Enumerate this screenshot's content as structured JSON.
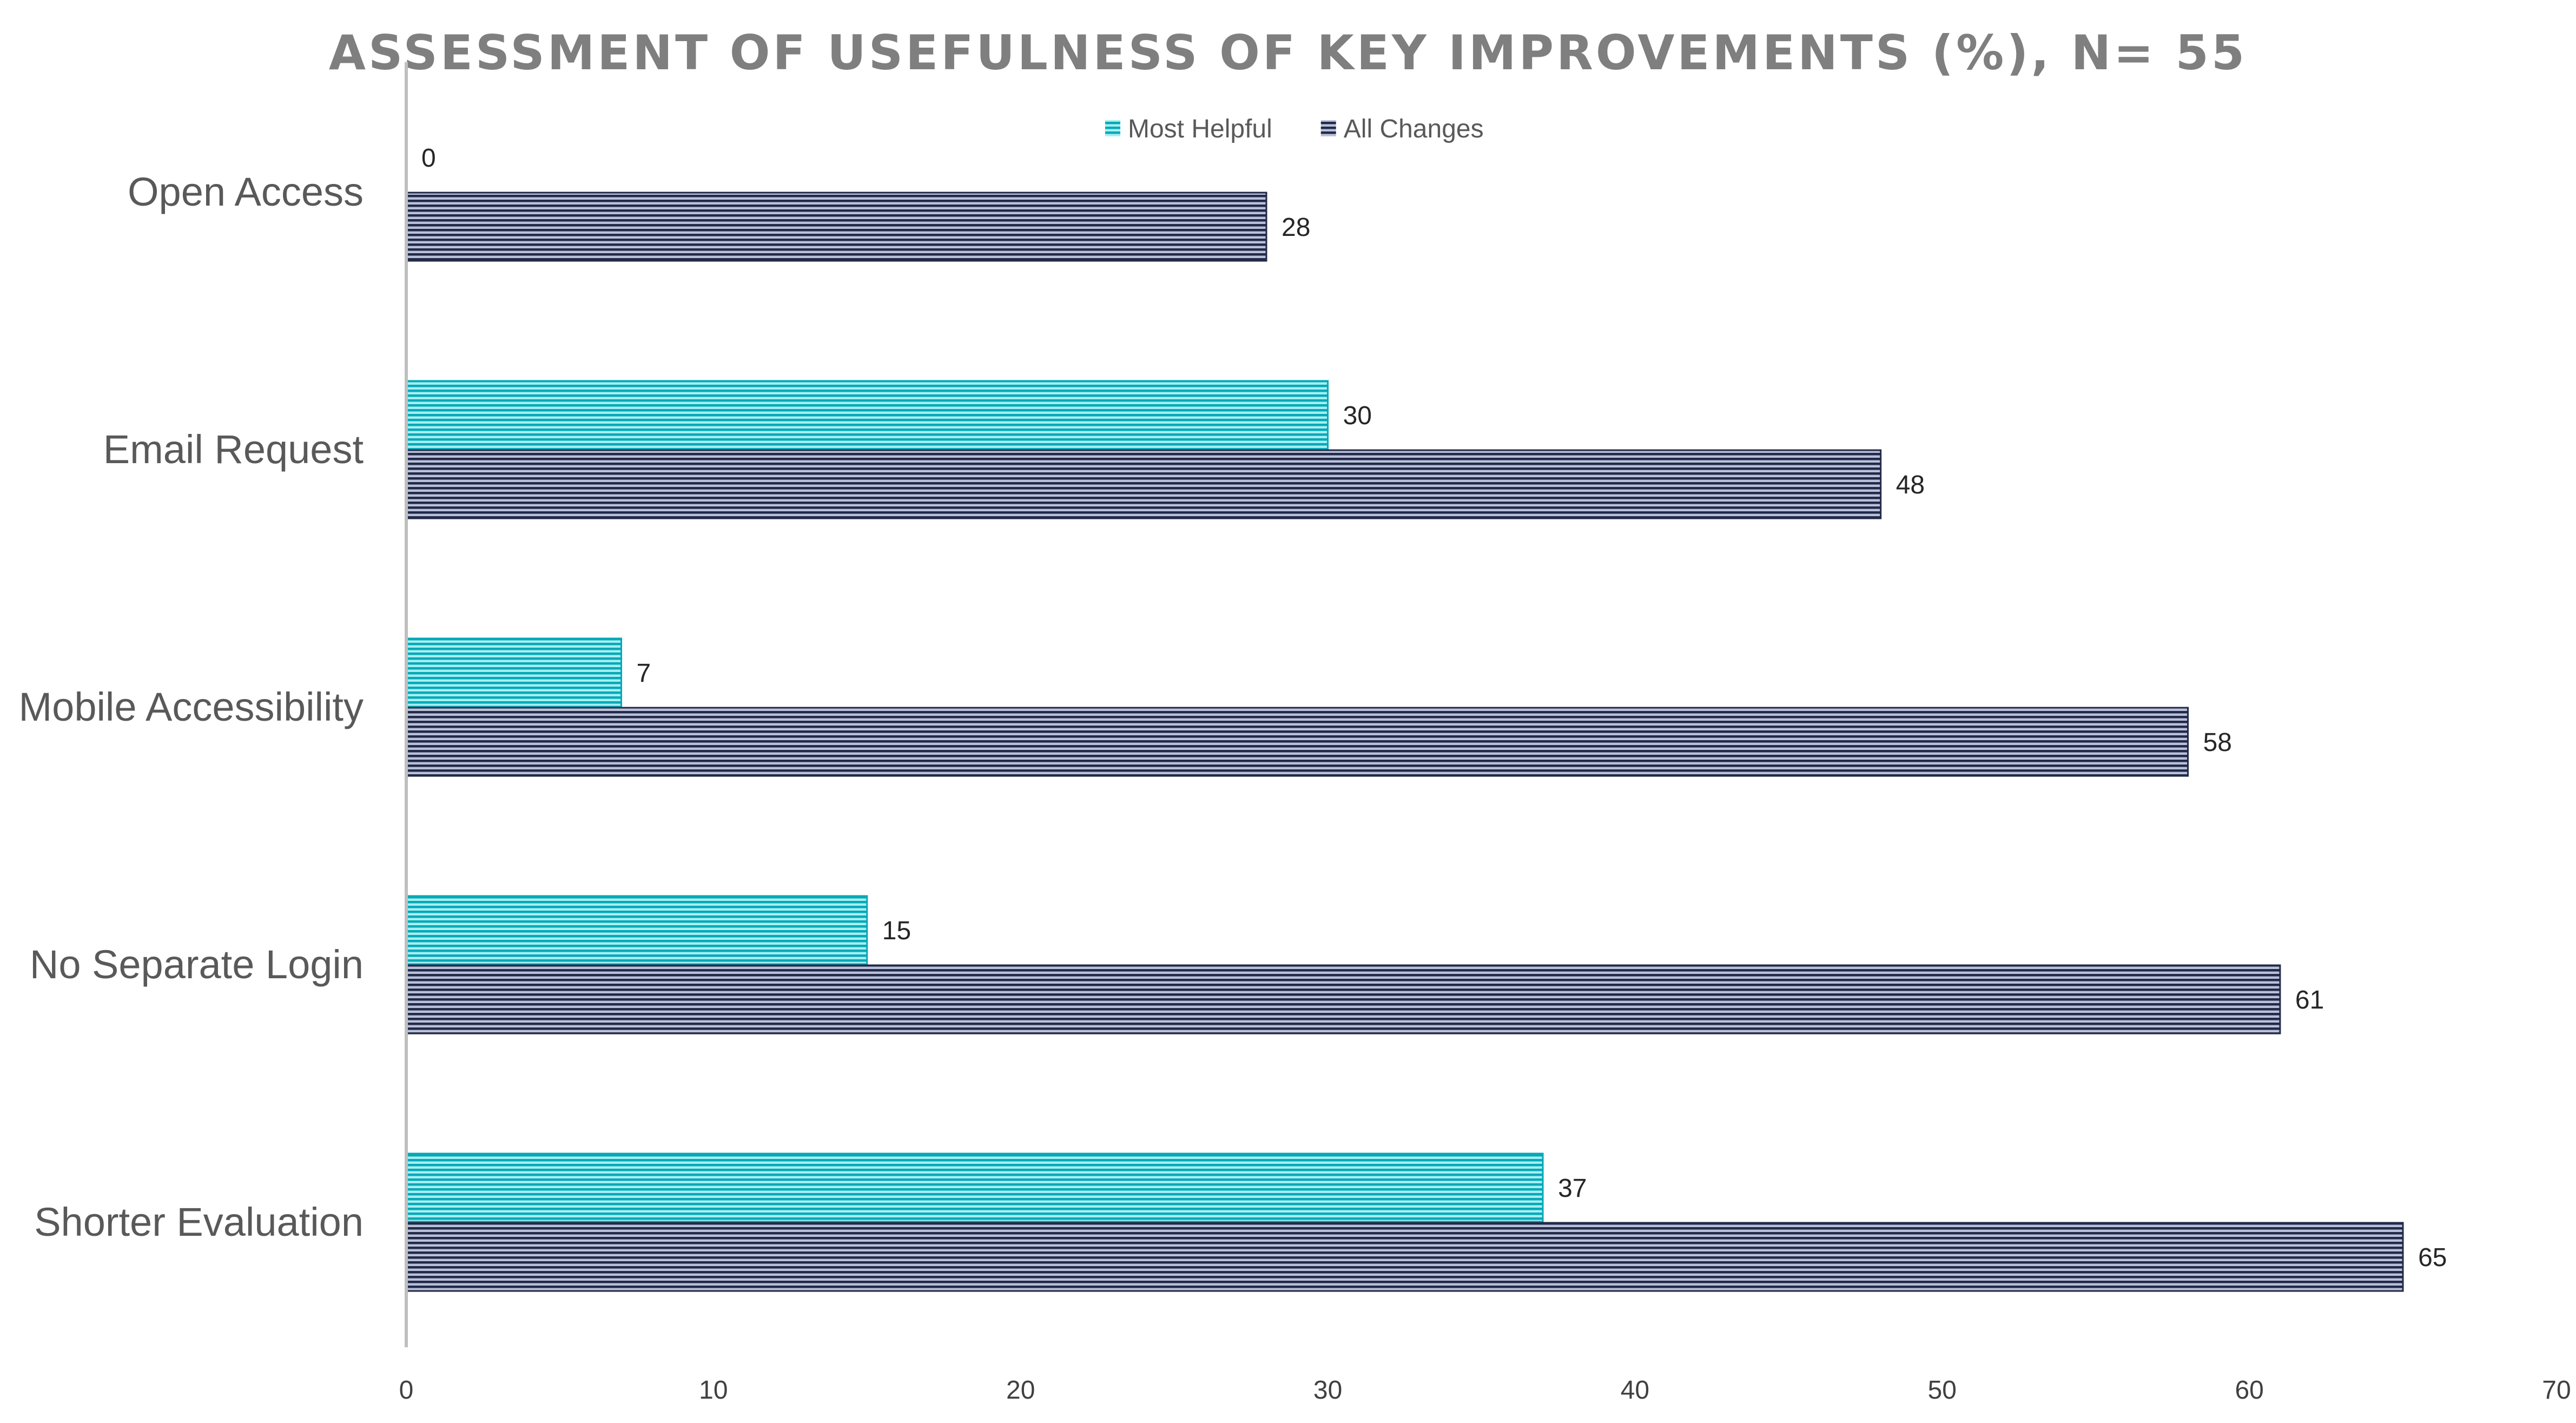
{
  "chart_data": {
    "type": "bar",
    "orientation": "horizontal",
    "title": "ASSESSMENT OF USEFULNESS OF KEY IMPROVEMENTS (%), N= 55",
    "categories": [
      "Open Access",
      "Email Request",
      "Mobile Accessibility",
      "No Separate Login",
      "Shorter Evaluation"
    ],
    "series": [
      {
        "name": "Most Helpful",
        "values": [
          0,
          30,
          7,
          15,
          37
        ],
        "color": "#04a9b7",
        "light": "#a6eef2"
      },
      {
        "name": "All Changes",
        "values": [
          28,
          48,
          58,
          61,
          65
        ],
        "color": "#222a48",
        "light": "#b9c0da"
      }
    ],
    "xlim": [
      0,
      70
    ],
    "xticks": [
      "0",
      "10",
      "20",
      "30",
      "40",
      "50",
      "60",
      "70"
    ],
    "xlabel": "",
    "ylabel": "",
    "grid": false,
    "legend": "top-center",
    "data_labels": true
  }
}
